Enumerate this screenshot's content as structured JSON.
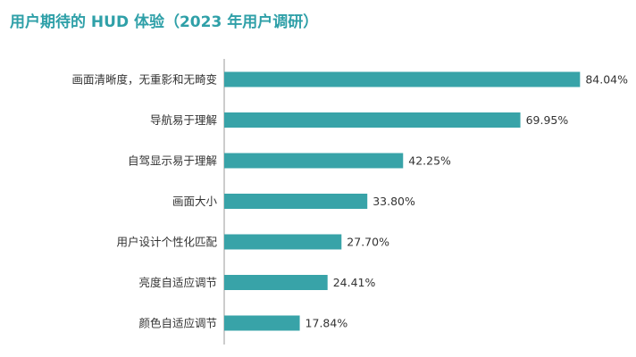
{
  "chart_data": {
    "type": "bar",
    "orientation": "horizontal",
    "title": "用户期待的 HUD 体验（2023 年用户调研）",
    "categories": [
      "画面清晰度，无重影和无畸变",
      "导航易于理解",
      "自驾显示易于理解",
      "画面大小",
      "用户设计个性化匹配",
      "亮度自适应调节",
      "颜色自适应调节"
    ],
    "values": [
      84.04,
      69.95,
      42.25,
      33.8,
      27.7,
      24.41,
      17.84
    ],
    "value_labels": [
      "84.04%",
      "69.95%",
      "42.25%",
      "33.80%",
      "27.70%",
      "24.41%",
      "17.84%"
    ],
    "xlim": [
      0,
      100
    ],
    "xlabel": "",
    "ylabel": "",
    "grid": false,
    "legend": "none",
    "bar_color": "#38a3a8",
    "title_color": "#2fa0a8"
  }
}
